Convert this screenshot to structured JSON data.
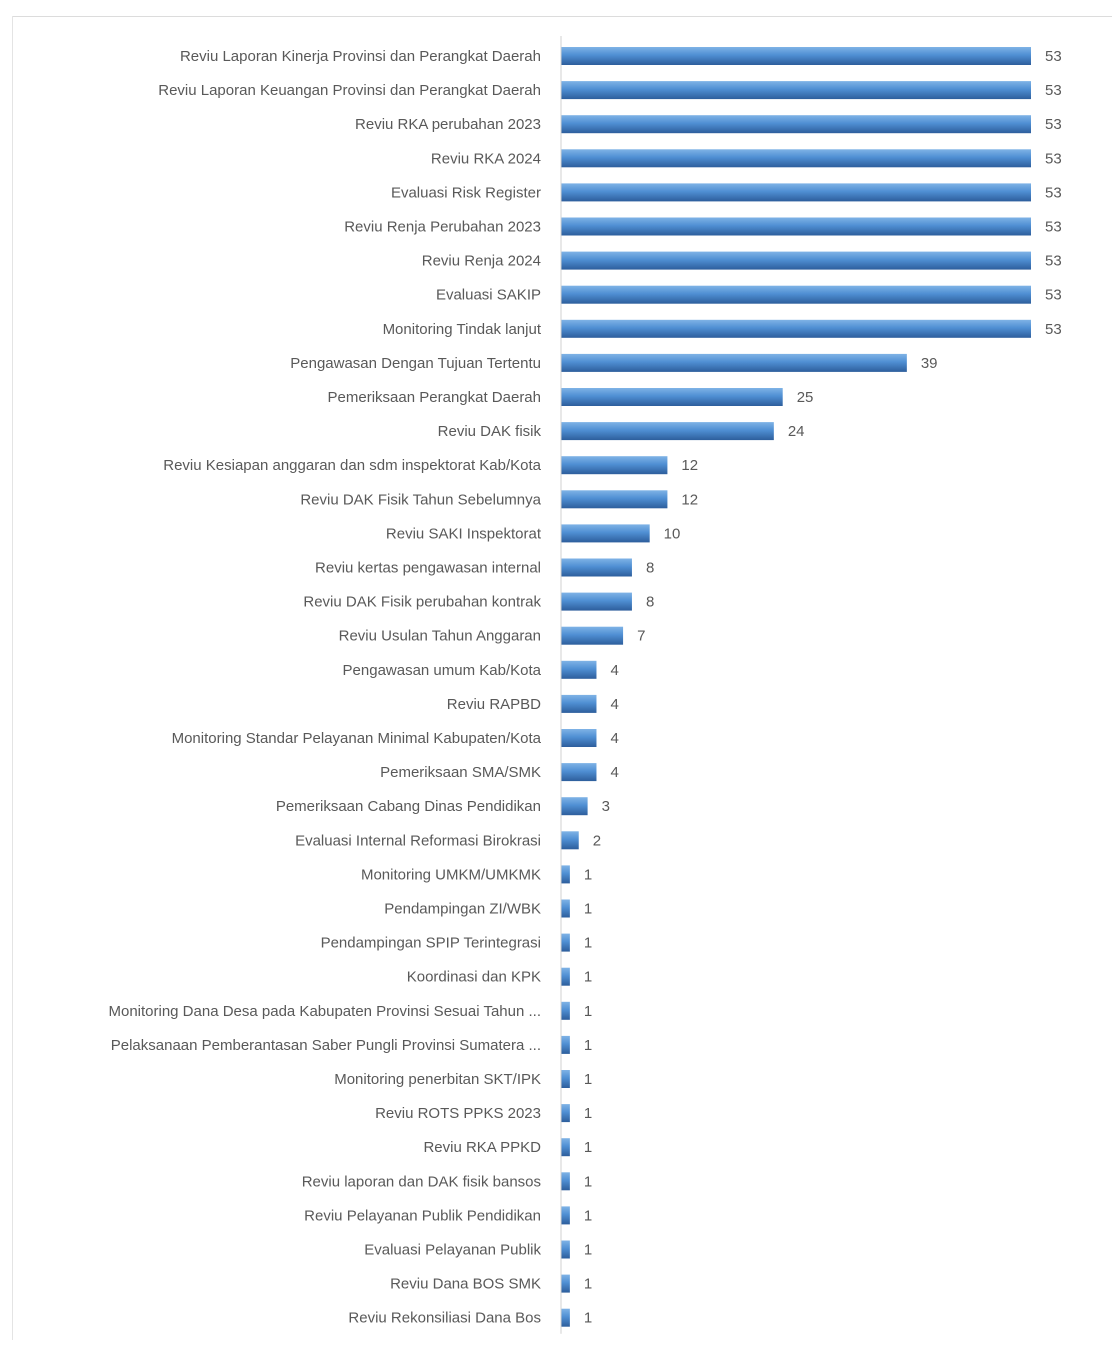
{
  "chart_data": {
    "type": "bar",
    "orientation": "horizontal",
    "categories": [
      "Reviu Laporan Kinerja Provinsi dan Perangkat Daerah",
      "Reviu Laporan Keuangan Provinsi dan Perangkat Daerah",
      "Reviu RKA perubahan 2023",
      "Reviu RKA 2024",
      "Evaluasi Risk Register",
      "Reviu Renja Perubahan 2023",
      "Reviu Renja 2024",
      "Evaluasi SAKIP",
      "Monitoring Tindak lanjut",
      "Pengawasan Dengan Tujuan Tertentu",
      "Pemeriksaan Perangkat Daerah",
      "Reviu DAK fisik",
      "Reviu Kesiapan anggaran dan sdm inspektorat Kab/Kota",
      "Reviu DAK Fisik Tahun Sebelumnya",
      "Reviu SAKI Inspektorat",
      "Reviu kertas pengawasan internal",
      "Reviu DAK Fisik perubahan kontrak",
      "Reviu Usulan Tahun Anggaran",
      "Pengawasan umum Kab/Kota",
      "Reviu RAPBD",
      "Monitoring Standar Pelayanan Minimal Kabupaten/Kota",
      "Pemeriksaan SMA/SMK",
      "Pemeriksaan Cabang Dinas Pendidikan",
      "Evaluasi Internal Reformasi Birokrasi",
      "Monitoring UMKM/UMKMK",
      "Pendampingan ZI/WBK",
      "Pendampingan SPIP Terintegrasi",
      "Koordinasi dan KPK",
      "Monitoring Dana Desa pada Kabupaten Provinsi Sesuai Tahun ...",
      "Pelaksanaan Pemberantasan Saber Pungli Provinsi Sumatera ...",
      "Monitoring penerbitan SKT/IPK",
      "Reviu ROTS PPKS 2023",
      "Reviu RKA PPKD",
      "Reviu laporan dan DAK fisik bansos",
      "Reviu Pelayanan Publik Pendidikan",
      "Evaluasi Pelayanan Publik",
      "Reviu Dana BOS SMK",
      "Reviu Rekonsiliasi Dana Bos"
    ],
    "values": [
      53,
      53,
      53,
      53,
      53,
      53,
      53,
      53,
      53,
      39,
      25,
      24,
      12,
      12,
      10,
      8,
      8,
      7,
      4,
      4,
      4,
      4,
      3,
      2,
      1,
      1,
      1,
      1,
      1,
      1,
      1,
      1,
      1,
      1,
      1,
      1,
      1,
      1
    ],
    "title": "",
    "xlabel": "",
    "ylabel": "",
    "xlim": [
      0,
      53
    ],
    "grid": false,
    "legend": "none",
    "colors": {
      "bar_light": "#5b9bd5",
      "bar_mid": "#4a85c6",
      "bar_dark": "#2e5f99",
      "label": "#595959"
    }
  }
}
